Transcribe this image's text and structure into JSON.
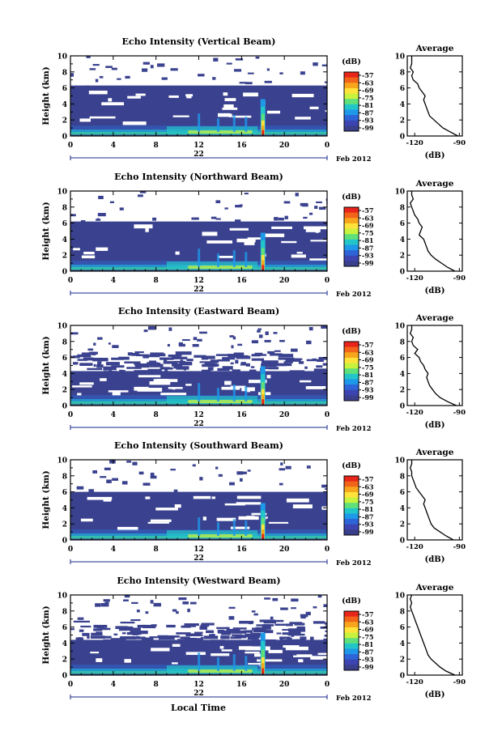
{
  "figure": {
    "xlabel_bottom": "Local Time",
    "date_label": "Feb 2012",
    "ylabel": "Height (km)",
    "cb_unit": "(dB)",
    "avg_title": "Average",
    "avg_xlabel": "(dB)"
  },
  "chart_data": [
    {
      "type": "heatmap",
      "title": "Echo Intensity (Vertical Beam)",
      "ylabel": "Height (km)",
      "xlim": [
        0,
        24
      ],
      "ylim": [
        0,
        10
      ],
      "xticks": [
        "0",
        "4",
        "8",
        "12",
        "16",
        "20",
        "0"
      ],
      "yticks": [
        "0",
        "2",
        "4",
        "6",
        "8",
        "10"
      ],
      "day_label": "22",
      "colorbar": {
        "label": "(dB)",
        "ticks": [
          "-57",
          "-63",
          "-69",
          "-75",
          "-81",
          "-87",
          "-93",
          "-99"
        ],
        "colors": [
          "#e8251a",
          "#f2641a",
          "#f7a51c",
          "#ffe33a",
          "#c9f23e",
          "#5fe07a",
          "#23c6c8",
          "#1e98e8",
          "#2d64d8",
          "#3b44b0",
          "#3a3f8c"
        ]
      },
      "layers": [
        {
          "type": "dense",
          "top_km": 6.3
        },
        {
          "type": "sparse",
          "from_km": 6.3,
          "to_km": 10
        }
      ],
      "spike_time_h": 18,
      "spike_top_km": 4.6,
      "average_profile": {
        "title": "Average",
        "xlabel": "(dB)",
        "xticks": [
          "-120",
          "-90"
        ],
        "yticks": [
          "0",
          "2",
          "4",
          "6",
          "8",
          "10"
        ],
        "xlim": [
          -125,
          -88
        ],
        "ylim": [
          0,
          10
        ],
        "height": [
          0,
          0.5,
          1,
          1.5,
          2,
          2.5,
          3,
          3.5,
          4,
          4.5,
          5,
          5.5,
          6,
          6.5,
          7,
          7.5,
          8,
          8.5,
          9,
          9.5,
          10
        ],
        "db": [
          -91,
          -96,
          -101,
          -104,
          -107,
          -110,
          -111,
          -112,
          -113,
          -114,
          -113,
          -115,
          -117,
          -118,
          -121,
          -122,
          -121,
          -123,
          -122,
          -122,
          -122
        ]
      }
    },
    {
      "type": "heatmap",
      "title": "Echo Intensity (Northward Beam)",
      "ylabel": "Height (km)",
      "xlim": [
        0,
        24
      ],
      "ylim": [
        0,
        10
      ],
      "xticks": [
        "0",
        "4",
        "8",
        "12",
        "16",
        "20",
        "0"
      ],
      "yticks": [
        "0",
        "2",
        "4",
        "6",
        "8",
        "10"
      ],
      "day_label": "22",
      "colorbar": {
        "label": "(dB)",
        "ticks": [
          "-57",
          "-63",
          "-69",
          "-75",
          "-81",
          "-87",
          "-93",
          "-99"
        ],
        "colors": [
          "#e8251a",
          "#f2641a",
          "#f7a51c",
          "#ffe33a",
          "#c9f23e",
          "#5fe07a",
          "#23c6c8",
          "#1e98e8",
          "#2d64d8",
          "#3b44b0",
          "#3a3f8c"
        ]
      },
      "layers": [
        {
          "type": "dense",
          "top_km": 6.2
        },
        {
          "type": "sparse",
          "from_km": 6.2,
          "to_km": 10
        }
      ],
      "spike_time_h": 18,
      "spike_top_km": 4.8,
      "average_profile": {
        "title": "Average",
        "xlabel": "(dB)",
        "xticks": [
          "-120",
          "-90"
        ],
        "yticks": [
          "0",
          "2",
          "4",
          "6",
          "8",
          "10"
        ],
        "xlim": [
          -125,
          -88
        ],
        "ylim": [
          0,
          10
        ],
        "height": [
          0,
          0.5,
          1,
          1.5,
          2,
          2.5,
          3,
          3.5,
          4,
          4.5,
          5,
          5.5,
          6,
          6.5,
          7,
          7.5,
          8,
          8.5,
          9,
          9.5,
          10
        ],
        "db": [
          -93,
          -98,
          -102,
          -106,
          -109,
          -111,
          -112,
          -113,
          -114,
          -117,
          -116,
          -115,
          -117,
          -118,
          -120,
          -121,
          -122,
          -123,
          -121,
          -122,
          -122
        ]
      }
    },
    {
      "type": "heatmap",
      "title": "Echo Intensity (Eastward Beam)",
      "ylabel": "Height (km)",
      "xlim": [
        0,
        24
      ],
      "ylim": [
        0,
        10
      ],
      "xticks": [
        "0",
        "4",
        "8",
        "12",
        "16",
        "20",
        "0"
      ],
      "yticks": [
        "0",
        "2",
        "4",
        "6",
        "8",
        "10"
      ],
      "day_label": "22",
      "colorbar": {
        "label": "(dB)",
        "ticks": [
          "-57",
          "-63",
          "-69",
          "-75",
          "-81",
          "-87",
          "-93",
          "-99"
        ],
        "colors": [
          "#e8251a",
          "#f2641a",
          "#f7a51c",
          "#ffe33a",
          "#c9f23e",
          "#5fe07a",
          "#23c6c8",
          "#1e98e8",
          "#2d64d8",
          "#3b44b0",
          "#3a3f8c"
        ]
      },
      "layers": [
        {
          "type": "dense",
          "top_km": 4.3
        },
        {
          "type": "sparse",
          "from_km": 4.3,
          "to_km": 6.8
        },
        {
          "type": "sparse",
          "from_km": 6.8,
          "to_km": 10
        }
      ],
      "spike_time_h": 18,
      "spike_top_km": 4.9,
      "average_profile": {
        "title": "Average",
        "xlabel": "(dB)",
        "xticks": [
          "-120",
          "-90"
        ],
        "yticks": [
          "0",
          "2",
          "4",
          "6",
          "8",
          "10"
        ],
        "xlim": [
          -125,
          -88
        ],
        "ylim": [
          0,
          10
        ],
        "height": [
          0,
          0.5,
          1,
          1.5,
          2,
          2.5,
          3,
          3.5,
          4,
          4.5,
          5,
          5.5,
          6,
          6.5,
          7,
          7.5,
          8,
          8.5,
          9,
          9.5,
          10
        ],
        "db": [
          -92,
          -98,
          -103,
          -106,
          -108,
          -110,
          -111,
          -112,
          -111,
          -113,
          -114,
          -116,
          -117,
          -120,
          -118,
          -121,
          -122,
          -121,
          -123,
          -122,
          -122
        ]
      }
    },
    {
      "type": "heatmap",
      "title": "Echo Intensity (Southward Beam)",
      "ylabel": "Height (km)",
      "xlim": [
        0,
        24
      ],
      "ylim": [
        0,
        10
      ],
      "xticks": [
        "0",
        "4",
        "8",
        "12",
        "16",
        "20",
        "0"
      ],
      "yticks": [
        "0",
        "2",
        "4",
        "6",
        "8",
        "10"
      ],
      "day_label": "22",
      "colorbar": {
        "label": "(dB)",
        "ticks": [
          "-57",
          "-63",
          "-69",
          "-75",
          "-81",
          "-87",
          "-93",
          "-99"
        ],
        "colors": [
          "#e8251a",
          "#f2641a",
          "#f7a51c",
          "#ffe33a",
          "#c9f23e",
          "#5fe07a",
          "#23c6c8",
          "#1e98e8",
          "#2d64d8",
          "#3b44b0",
          "#3a3f8c"
        ]
      },
      "layers": [
        {
          "type": "dense",
          "top_km": 6.0
        },
        {
          "type": "sparse",
          "from_km": 6.0,
          "to_km": 10
        }
      ],
      "spike_time_h": 18,
      "spike_top_km": 4.6,
      "average_profile": {
        "title": "Average",
        "xlabel": "(dB)",
        "xticks": [
          "-120",
          "-90"
        ],
        "yticks": [
          "0",
          "2",
          "4",
          "6",
          "8",
          "10"
        ],
        "xlim": [
          -125,
          -88
        ],
        "ylim": [
          0,
          10
        ],
        "height": [
          0,
          0.5,
          1,
          1.5,
          2,
          2.5,
          3,
          3.5,
          4,
          4.5,
          5,
          5.5,
          6,
          6.5,
          7,
          7.5,
          8,
          8.5,
          9,
          9.5,
          10
        ],
        "db": [
          -94,
          -99,
          -103,
          -107,
          -109,
          -110,
          -111,
          -112,
          -113,
          -114,
          -113,
          -115,
          -117,
          -119,
          -120,
          -121,
          -122,
          -122,
          -123,
          -122,
          -122
        ]
      }
    },
    {
      "type": "heatmap",
      "title": "Echo Intensity (Westward Beam)",
      "ylabel": "Height (km)",
      "xlim": [
        0,
        24
      ],
      "ylim": [
        0,
        10
      ],
      "xticks": [
        "0",
        "4",
        "8",
        "12",
        "16",
        "20",
        "0"
      ],
      "yticks": [
        "0",
        "2",
        "4",
        "6",
        "8",
        "10"
      ],
      "day_label": "22",
      "colorbar": {
        "label": "(dB)",
        "ticks": [
          "-57",
          "-63",
          "-69",
          "-75",
          "-81",
          "-87",
          "-93",
          "-99"
        ],
        "colors": [
          "#e8251a",
          "#f2641a",
          "#f7a51c",
          "#ffe33a",
          "#c9f23e",
          "#5fe07a",
          "#23c6c8",
          "#1e98e8",
          "#2d64d8",
          "#3b44b0",
          "#3a3f8c"
        ]
      },
      "layers": [
        {
          "type": "dense",
          "top_km": 4.4
        },
        {
          "type": "sparse",
          "from_km": 4.4,
          "to_km": 7.0
        },
        {
          "type": "sparse",
          "from_km": 7.0,
          "to_km": 10
        }
      ],
      "spike_time_h": 18,
      "spike_top_km": 5.3,
      "average_profile": {
        "title": "Average",
        "xlabel": "(dB)",
        "xticks": [
          "-120",
          "-90"
        ],
        "yticks": [
          "0",
          "2",
          "4",
          "6",
          "8",
          "10"
        ],
        "xlim": [
          -125,
          -88
        ],
        "ylim": [
          0,
          10
        ],
        "height": [
          0,
          0.5,
          1,
          1.5,
          2,
          2.5,
          3,
          3.5,
          4,
          4.5,
          5,
          5.5,
          6,
          6.5,
          7,
          7.5,
          8,
          8.5,
          9,
          9.5,
          10
        ],
        "db": [
          -93,
          -99,
          -103,
          -106,
          -109,
          -111,
          -112,
          -113,
          -114,
          -115,
          -116,
          -117,
          -118,
          -119,
          -120,
          -121,
          -122,
          -123,
          -122,
          -123,
          -122
        ]
      }
    }
  ]
}
